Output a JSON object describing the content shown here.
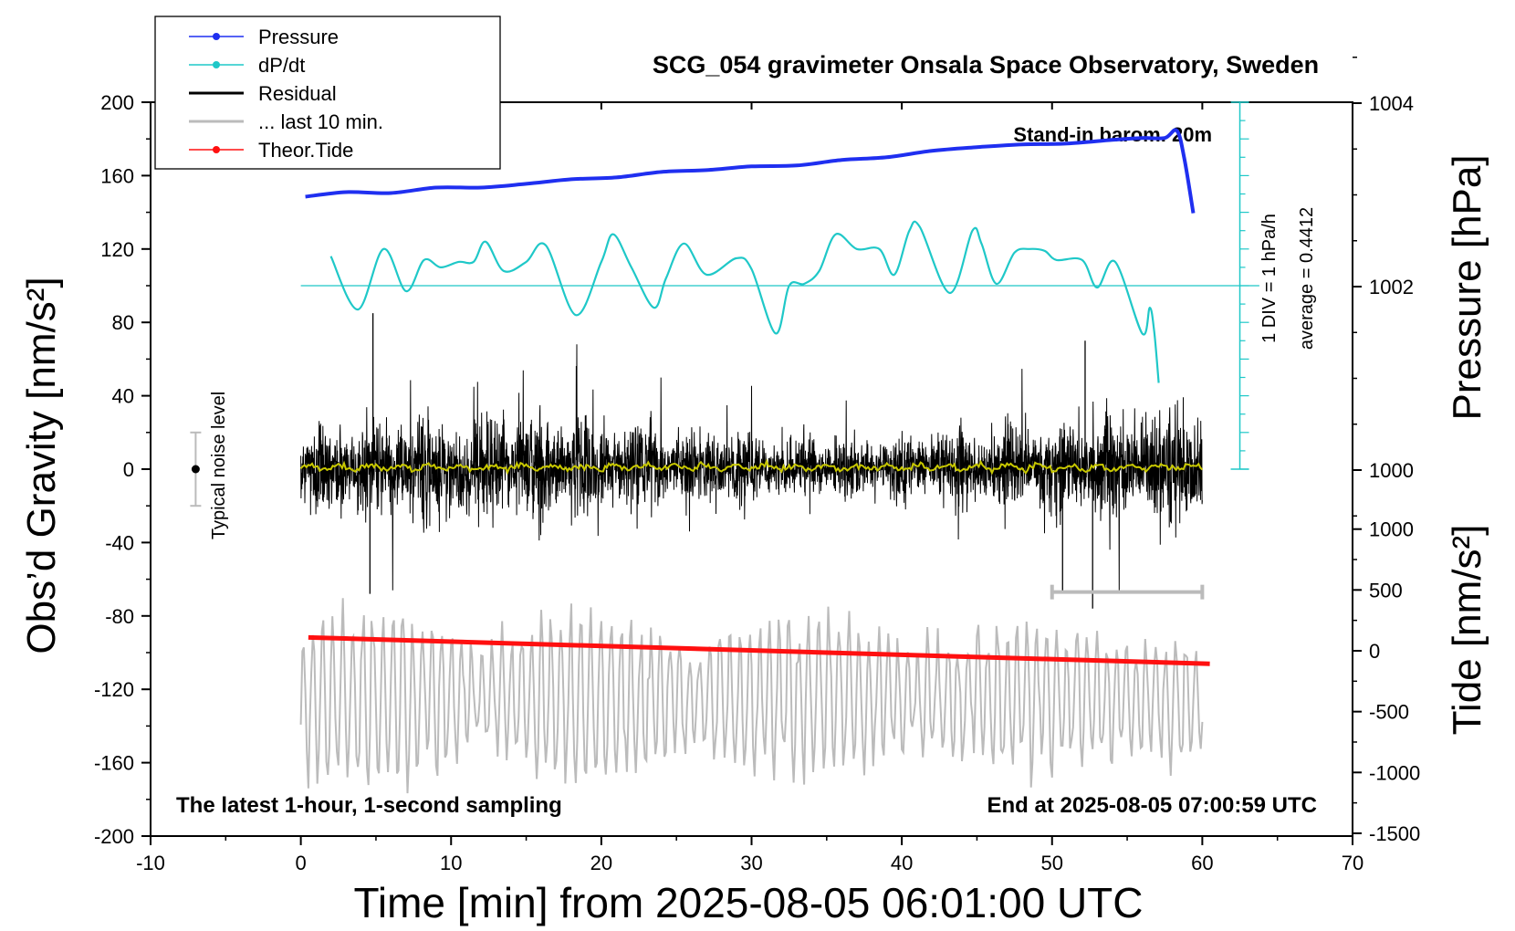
{
  "chart_data": {
    "type": "line",
    "title": "SCG_054 gravimeter Onsala Space Observatory, Sweden",
    "xlabel": "Time [min] from 2025-08-05 06:01:00 UTC",
    "ylabel_left": "Obs’d Gravity [nm/s²]",
    "ylabel_right_top": "Pressure [hPa]",
    "ylabel_right_bottom": "Tide [nm/s²]",
    "xlim": [
      -10,
      70
    ],
    "ylim": [
      -200,
      200
    ],
    "x_ticks": [
      "-10",
      "0",
      "10",
      "20",
      "30",
      "40",
      "50",
      "60",
      "70"
    ],
    "y_ticks": [
      "200",
      "160",
      "120",
      "80",
      "40",
      "0",
      "-40",
      "-80",
      "-120",
      "-160",
      "-200"
    ],
    "pressure_ticks": [
      {
        "label": "1004",
        "value": 1004
      },
      {
        "label": "1002",
        "value": 1002
      },
      {
        "label": "1000",
        "value": 1000
      }
    ],
    "tide_ticks": [
      {
        "label": "1000",
        "value": 1000
      },
      {
        "label": "500",
        "value": 500
      },
      {
        "label": "0",
        "value": 0
      },
      {
        "label": "-500",
        "value": -500
      },
      {
        "label": "-1000",
        "value": -1000
      },
      {
        "label": "-1500",
        "value": -1500
      }
    ],
    "legend": [
      {
        "name": "Pressure",
        "color": "#1f2ff0",
        "style": "line-dot"
      },
      {
        "name": "dP/dt",
        "color": "#1fc8c8",
        "style": "line-dot"
      },
      {
        "name": "Residual",
        "color": "#000000",
        "style": "line"
      },
      {
        "name": "... last 10 min.",
        "color": "#bbbbbb",
        "style": "line"
      },
      {
        "name": "Theor.Tide",
        "color": "#ff1010",
        "style": "line-dot"
      }
    ],
    "annotations": {
      "barometer": "Stand-in barom. 20m",
      "latest": "The latest 1-hour, 1-second sampling",
      "end_time": "End at 2025-08-05 07:00:59 UTC",
      "noise": "Typical noise level",
      "div": "1 DIV = 1 hPa/h",
      "average": "average = 0.4412"
    },
    "noise_bar": {
      "x": -7,
      "center": 0,
      "half_range": 20
    },
    "last10_bar": {
      "x_start": 50,
      "x_end": 60,
      "y": -67
    },
    "series": [
      {
        "name": "Pressure",
        "color": "#1f2ff0",
        "x": [
          0.3,
          3,
          6,
          9,
          12,
          15,
          18,
          21,
          24,
          27,
          30,
          33,
          36,
          39,
          42,
          45,
          48,
          51,
          54,
          56,
          57.5,
          58.3,
          58.8,
          59.4
        ],
        "y": [
          1002.98,
          1003.03,
          1003.02,
          1003.08,
          1003.08,
          1003.12,
          1003.17,
          1003.19,
          1003.25,
          1003.27,
          1003.31,
          1003.32,
          1003.38,
          1003.41,
          1003.48,
          1003.52,
          1003.55,
          1003.56,
          1003.6,
          1003.62,
          1003.62,
          1003.7,
          1003.4,
          1002.8
        ]
      },
      {
        "name": "dP/dt",
        "color": "#1fc8c8",
        "baseline": 100,
        "x": [
          2,
          3.8,
          5.5,
          7,
          8.2,
          9.3,
          10.5,
          11.5,
          12.3,
          13.5,
          15,
          16.3,
          18.3,
          20,
          20.8,
          22,
          23.5,
          24.3,
          25.5,
          27,
          29,
          30,
          31.6,
          32.5,
          33.5,
          34.5,
          35.6,
          37,
          38.5,
          39.5,
          40.5,
          41.2,
          43.2,
          44.7,
          45.3,
          46.3,
          47.5,
          48.5,
          49.5,
          50.3,
          52,
          53,
          54.2,
          56,
          56.5,
          56.8,
          57.1
        ],
        "y": [
          116,
          87,
          120,
          97,
          114,
          110,
          113,
          113,
          124,
          108,
          113,
          122,
          84,
          113,
          128,
          110,
          88,
          104,
          123,
          106,
          115,
          109,
          74,
          100,
          101,
          108,
          128,
          120,
          120,
          106,
          130,
          132,
          96,
          130,
          123,
          101,
          118,
          120,
          119,
          114,
          114,
          99,
          113,
          74,
          88,
          75,
          47
        ]
      },
      {
        "name": "Residual",
        "color": "#000000",
        "x_range": [
          0,
          60
        ],
        "typical_amplitude": 35,
        "extremes": [
          {
            "x": 4.8,
            "y": 85
          },
          {
            "x": 4.6,
            "y": -68
          },
          {
            "x": 50.7,
            "y": -67
          },
          {
            "x": 52.7,
            "y": -76
          },
          {
            "x": 52.2,
            "y": 70
          }
        ]
      },
      {
        "name": "Residual (smoothed)",
        "color": "#c8c800",
        "x_range": [
          0,
          60
        ],
        "mean": 1
      },
      {
        "name": "... last 10 min.",
        "color": "#bbbbbb",
        "x_range": [
          0,
          60
        ],
        "y_range": [
          -200,
          -67
        ]
      },
      {
        "name": "Theor.Tide",
        "color": "#ff1010",
        "axis": "tide",
        "x": [
          0.5,
          60.5
        ],
        "y": [
          110,
          -107
        ]
      }
    ]
  }
}
